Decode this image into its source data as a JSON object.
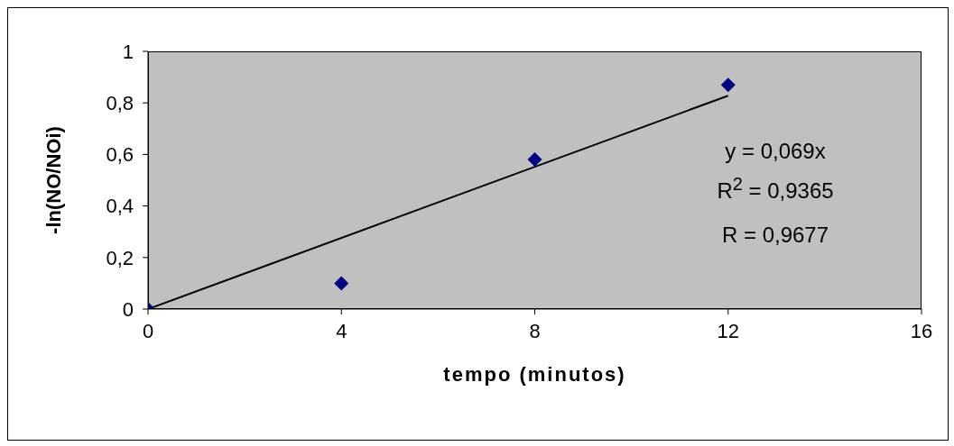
{
  "chart_data": {
    "type": "scatter",
    "xlabel": "tempo (minutos)",
    "ylabel": "-ln(NO/NOi)",
    "x": [
      0,
      4,
      8,
      12
    ],
    "series": [
      {
        "color": "#000080",
        "values": [
          0,
          0.1,
          0.58,
          0.87
        ],
        "marker": "diamond"
      },
      {
        "type": "line",
        "color": "#000000",
        "x": [
          0,
          12
        ],
        "values": [
          0,
          0.828
        ],
        "marker": "none",
        "line_style": "solid"
      }
    ],
    "xlim": [
      0,
      16
    ],
    "xticks": [
      0,
      4,
      8,
      12,
      16
    ],
    "ylim": [
      0,
      1
    ],
    "yticks": [
      0,
      {
        "value": 0.2,
        "label": "0,2"
      },
      {
        "value": 0.4,
        "label": "0,4"
      },
      {
        "value": 0.6,
        "label": "0,6"
      },
      {
        "value": 0.8,
        "label": "0,8"
      },
      1
    ],
    "grid": false,
    "annotations": [
      "y = 0,069x",
      "R$^{2}$ = 0,9365",
      "R = 0,9677"
    ]
  }
}
